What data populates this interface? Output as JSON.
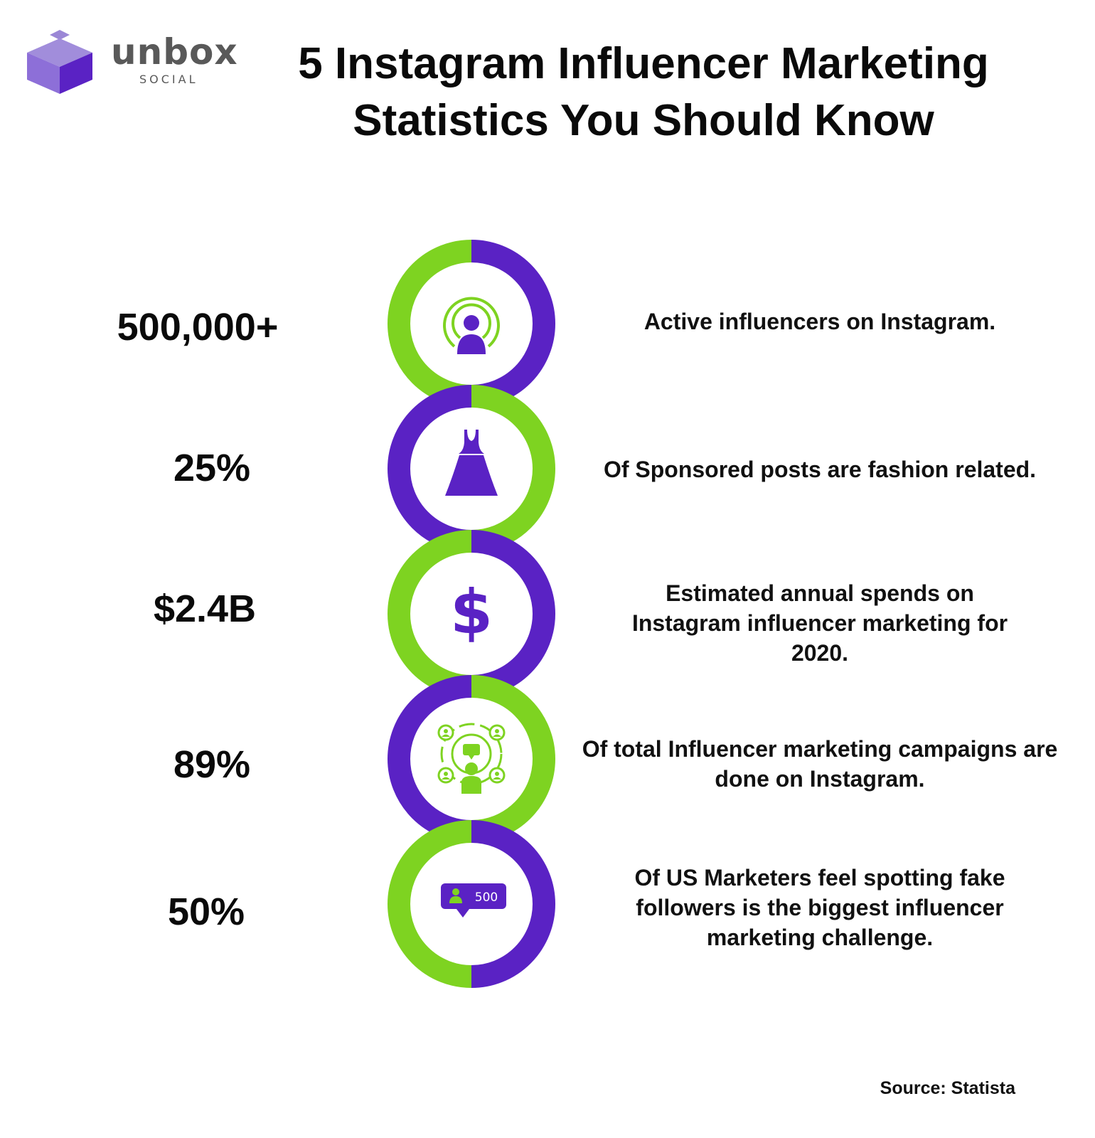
{
  "brand": {
    "name": "unbox",
    "tagline": "SOCIAL",
    "colors": {
      "purple": "#5a22c4",
      "green": "#7ed321",
      "gray": "#595959"
    }
  },
  "title": {
    "line1": "5 Instagram Influencer Marketing",
    "line2": "Statistics You Should Know"
  },
  "stats": [
    {
      "value": "500,000+",
      "description": "Active influencers on Instagram.",
      "icon": "broadcast-person-icon"
    },
    {
      "value": "25%",
      "description": "Of Sponsored posts are fashion related.",
      "icon": "dress-icon"
    },
    {
      "value": "$2.4B",
      "description": "Estimated annual spends on Instagram influencer marketing for 2020.",
      "icon": "dollar-icon"
    },
    {
      "value": "89%",
      "description": "Of total Influencer marketing campaigns are done on Instagram.",
      "icon": "network-people-icon"
    },
    {
      "value": "50%",
      "description": "Of US Marketers feel spotting fake followers is the biggest influencer marketing challenge.",
      "icon": "follower-count-icon",
      "icon_text": "500"
    }
  ],
  "source": "Source: Statista"
}
